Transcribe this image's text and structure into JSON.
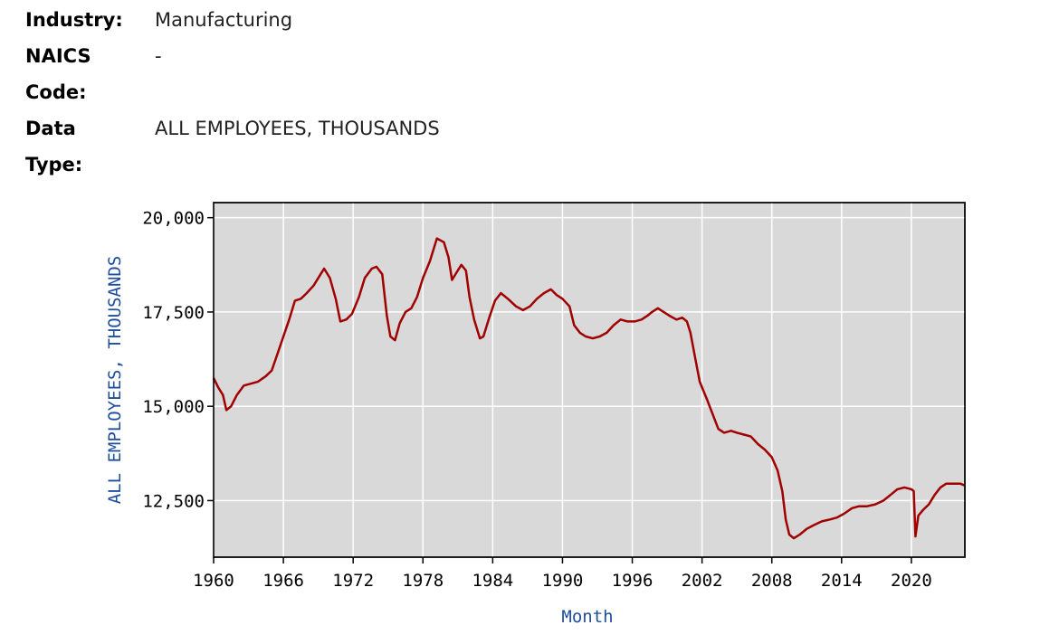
{
  "meta": {
    "industry_label": "Industry:",
    "industry_value": "Manufacturing",
    "naics_label_line1": "NAICS",
    "naics_label_line2": "Code:",
    "naics_value": "-",
    "datatype_label_line1": "Data",
    "datatype_label_line2": "Type:",
    "datatype_value": "ALL EMPLOYEES, THOUSANDS"
  },
  "colors": {
    "line": "#a00000",
    "plot_background": "#d9d9d9",
    "grid": "#ffffff",
    "axis_title": "#1f4e9e"
  },
  "chart_data": {
    "type": "line",
    "title": "",
    "xlabel": "Month",
    "ylabel": "ALL EMPLOYEES, THOUSANDS",
    "xlim": [
      1960,
      2024.6
    ],
    "ylim": [
      11000,
      20400
    ],
    "x_ticks": [
      1960,
      1966,
      1972,
      1978,
      1984,
      1990,
      1996,
      2002,
      2008,
      2014,
      2020
    ],
    "x_tick_labels": [
      "1960",
      "1966",
      "1972",
      "1978",
      "1984",
      "1990",
      "1996",
      "2002",
      "2008",
      "2014",
      "2020"
    ],
    "y_ticks": [
      12500,
      15000,
      17500,
      20000
    ],
    "y_tick_labels": [
      "12,500",
      "15,000",
      "17,500",
      "20,000"
    ],
    "grid": true,
    "legend": "none",
    "series": [
      {
        "x": [
          1960.0,
          1960.4,
          1960.8,
          1961.1,
          1961.5,
          1962.0,
          1962.6,
          1963.2,
          1963.8,
          1964.5,
          1965.0,
          1965.5,
          1966.0,
          1966.5,
          1967.0,
          1967.5,
          1968.0,
          1968.6,
          1969.2,
          1969.5,
          1970.0,
          1970.5,
          1970.9,
          1971.4,
          1971.9,
          1972.5,
          1973.0,
          1973.6,
          1974.0,
          1974.5,
          1974.9,
          1975.2,
          1975.6,
          1976.0,
          1976.5,
          1977.0,
          1977.5,
          1978.0,
          1978.6,
          1979.2,
          1979.8,
          1980.2,
          1980.5,
          1980.9,
          1981.3,
          1981.7,
          1982.0,
          1982.4,
          1982.9,
          1983.2,
          1983.7,
          1984.2,
          1984.7,
          1985.3,
          1986.0,
          1986.6,
          1987.2,
          1987.8,
          1988.4,
          1989.0,
          1989.5,
          1990.0,
          1990.6,
          1991.0,
          1991.5,
          1992.0,
          1992.6,
          1993.2,
          1993.8,
          1994.4,
          1995.0,
          1995.6,
          1996.2,
          1996.8,
          1997.3,
          1997.7,
          1998.2,
          1998.7,
          1999.2,
          1999.8,
          2000.3,
          2000.7,
          2001.0,
          2001.4,
          2001.8,
          2002.4,
          2002.9,
          2003.4,
          2003.9,
          2004.5,
          2005.0,
          2005.6,
          2006.2,
          2006.8,
          2007.4,
          2008.0,
          2008.5,
          2008.9,
          2009.2,
          2009.5,
          2009.9,
          2010.4,
          2011.0,
          2011.6,
          2012.3,
          2013.0,
          2013.6,
          2014.2,
          2014.9,
          2015.5,
          2016.2,
          2016.9,
          2017.6,
          2018.2,
          2018.8,
          2019.4,
          2020.0,
          2020.2,
          2020.35,
          2020.6,
          2021.0,
          2021.5,
          2022.0,
          2022.5,
          2023.0,
          2023.6,
          2024.2,
          2024.6
        ],
        "y": [
          15750,
          15500,
          15300,
          14900,
          15000,
          15300,
          15550,
          15600,
          15650,
          15800,
          15950,
          16400,
          16850,
          17300,
          17800,
          17850,
          18000,
          18200,
          18500,
          18650,
          18400,
          17850,
          17250,
          17300,
          17450,
          17900,
          18400,
          18650,
          18700,
          18500,
          17400,
          16850,
          16750,
          17200,
          17500,
          17600,
          17900,
          18400,
          18850,
          19450,
          19350,
          18950,
          18350,
          18550,
          18750,
          18600,
          17900,
          17300,
          16800,
          16850,
          17350,
          17800,
          18000,
          17850,
          17650,
          17550,
          17650,
          17850,
          18000,
          18100,
          17950,
          17850,
          17650,
          17150,
          16950,
          16850,
          16800,
          16850,
          16950,
          17150,
          17300,
          17250,
          17250,
          17300,
          17400,
          17500,
          17600,
          17500,
          17400,
          17300,
          17350,
          17250,
          16950,
          16300,
          15650,
          15200,
          14800,
          14400,
          14300,
          14350,
          14300,
          14250,
          14200,
          14000,
          13850,
          13650,
          13300,
          12750,
          12000,
          11600,
          11500,
          11600,
          11750,
          11850,
          11950,
          12000,
          12050,
          12150,
          12300,
          12350,
          12350,
          12400,
          12500,
          12650,
          12800,
          12850,
          12800,
          12750,
          11550,
          12100,
          12250,
          12400,
          12650,
          12850,
          12950,
          12950,
          12950,
          12900
        ]
      }
    ]
  }
}
